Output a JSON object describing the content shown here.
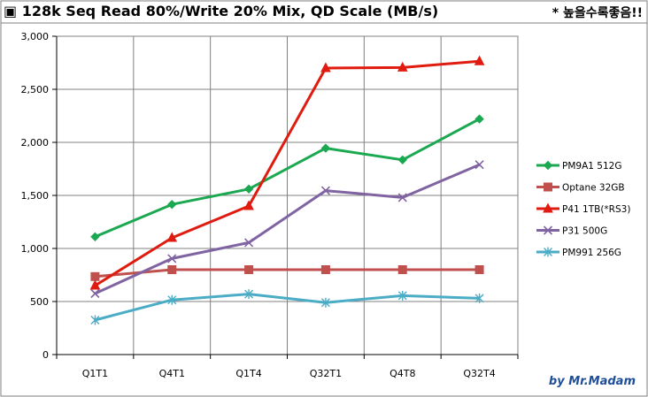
{
  "header": {
    "title": "▣ 128k Seq Read 80%/Write 20% Mix, QD Scale (MB/s)",
    "note": "* 높을수록좋음!!"
  },
  "credit": "by Mr.Madam",
  "colors": {
    "border": "#7f7f7f",
    "grid": "#808080"
  },
  "chart_data": {
    "type": "line",
    "title": "▣ 128k Seq Read 80%/Write 20% Mix, QD Scale (MB/s)",
    "xlabel": "",
    "ylabel": "",
    "categories": [
      "Q1T1",
      "Q4T1",
      "Q1T4",
      "Q32T1",
      "Q4T8",
      "Q32T4"
    ],
    "ylim": [
      0,
      3000
    ],
    "yticks": [
      0,
      500,
      1000,
      1500,
      2000,
      2500,
      3000
    ],
    "ytick_labels": [
      "0",
      "500",
      "1,000",
      "1,500",
      "2,000",
      "2,500",
      "3,000"
    ],
    "grid": true,
    "legend_position": "right",
    "series": [
      {
        "name": "PM9A1 512G",
        "color": "#1aa850",
        "marker": "diamond",
        "values": [
          1110,
          1415,
          1560,
          1945,
          1835,
          2220
        ]
      },
      {
        "name": "Optane 32GB",
        "color": "#c0504d",
        "marker": "square",
        "values": [
          735,
          800,
          800,
          800,
          800,
          800
        ]
      },
      {
        "name": "P41 1TB(*RS3)",
        "color": "#e01b10",
        "marker": "triangle",
        "values": [
          650,
          1100,
          1400,
          2700,
          2705,
          2765
        ]
      },
      {
        "name": "P31 500G",
        "color": "#8064a2",
        "marker": "x",
        "values": [
          575,
          905,
          1055,
          1545,
          1480,
          1790
        ]
      },
      {
        "name": "PM991 256G",
        "color": "#4bacc6",
        "marker": "star",
        "values": [
          325,
          515,
          570,
          490,
          555,
          530
        ]
      }
    ]
  }
}
